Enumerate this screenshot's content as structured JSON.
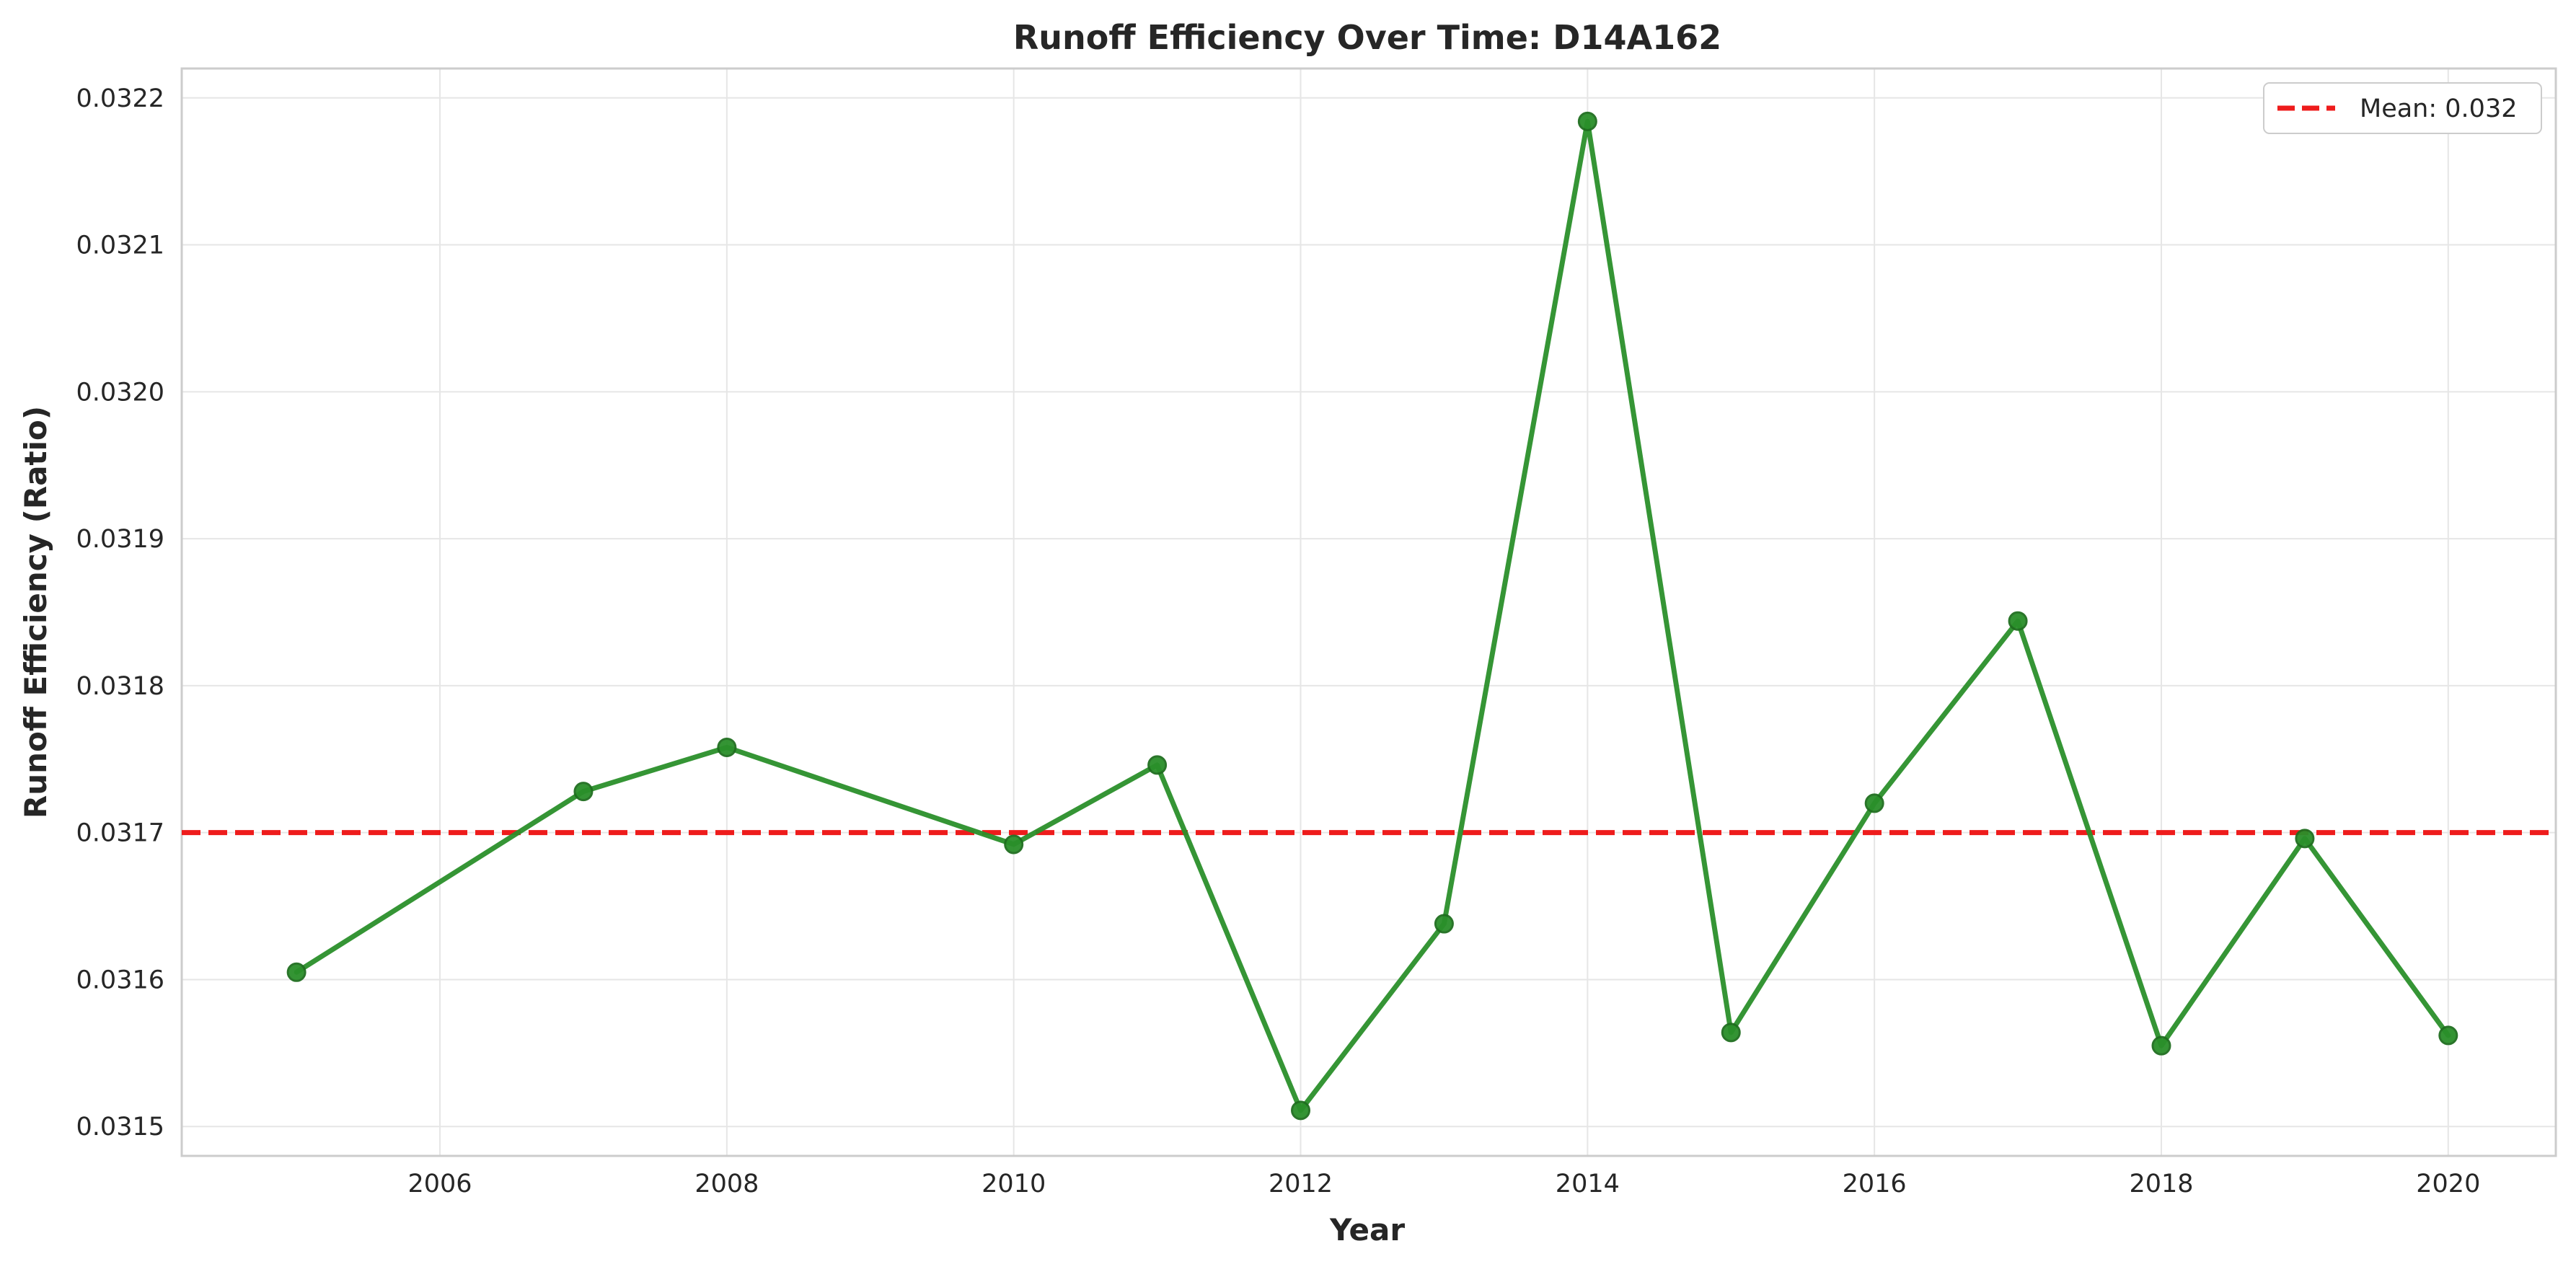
{
  "chart_data": {
    "type": "line",
    "title": "Runoff Efficiency Over Time: D14A162",
    "xlabel": "Year",
    "ylabel": "Runoff Efficiency (Ratio)",
    "xlim": [
      2004.2,
      2020.75
    ],
    "ylim": [
      0.03148,
      0.03222
    ],
    "x_ticks": [
      2006,
      2008,
      2010,
      2012,
      2014,
      2016,
      2018,
      2020
    ],
    "y_ticks": [
      0.0315,
      0.0316,
      0.0317,
      0.0318,
      0.0319,
      0.032,
      0.0321,
      0.0322
    ],
    "grid": true,
    "legend_position": "top-right",
    "series": [
      {
        "color": "#2a8f2a",
        "marker": "circle",
        "x": [
          2005,
          2007,
          2008,
          2010,
          2011,
          2012,
          2013,
          2014,
          2015,
          2016,
          2017,
          2018,
          2019,
          2020
        ],
        "y": [
          0.031605,
          0.031728,
          0.031758,
          0.031692,
          0.031746,
          0.031511,
          0.031638,
          0.032184,
          0.031564,
          0.03172,
          0.031844,
          0.031555,
          0.031696,
          0.031562
        ]
      }
    ],
    "reference_lines": [
      {
        "name": "Mean: 0.032",
        "orientation": "horizontal",
        "value": 0.0317,
        "color": "#ee1c1c",
        "style": "dashed"
      }
    ]
  }
}
